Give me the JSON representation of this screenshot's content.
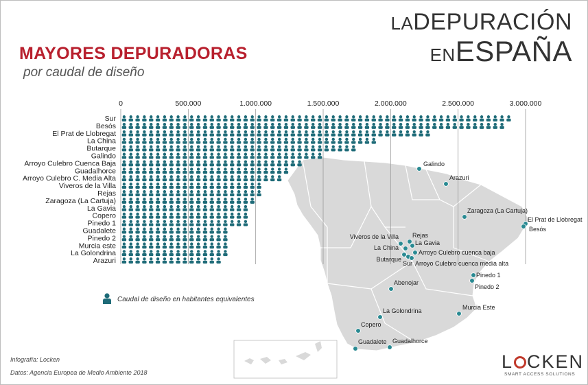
{
  "header": {
    "title": "MAYORES DEPURADORAS",
    "subtitle": "por caudal de diseño",
    "banner_line1_a": "LA",
    "banner_line1_b": "DEPURACIÓN",
    "banner_line2_a": "EN",
    "banner_line2_b": "ESPAÑA"
  },
  "legend": {
    "label": "Caudal de diseño en habitantes equivalentes",
    "icon": "person-icon"
  },
  "footer": {
    "credit": "Infografía: Locken",
    "source": "Datos: Agencia Europea de Medio Ambiente 2018"
  },
  "logo": {
    "left": "L",
    "right": "CKEN",
    "tagline": "SMART ACCESS SOLUTIONS",
    "accent": "#c0392b"
  },
  "colors": {
    "icon": "#1e6b78",
    "title": "#b8202e",
    "map_land": "#d9d9d9",
    "map_border": "#ffffff",
    "marker": "#2a8a92"
  },
  "chart_data": {
    "type": "bar",
    "orientation": "horizontal",
    "unit_per_icon": 50000,
    "xlim": [
      0,
      3000000
    ],
    "x_ticks": [
      "0",
      "500.000",
      "1.000.000",
      "1.500.000",
      "2.000.000",
      "2.500.000",
      "3.000.000"
    ],
    "x_tick_values": [
      0,
      500000,
      1000000,
      1500000,
      2000000,
      2500000,
      3000000
    ],
    "categories": [
      "Sur",
      "Besós",
      "El Prat de Llobregat",
      "La China",
      "Butarque",
      "Galindo",
      "Arroyo Culebro Cuenca Baja",
      "Guadalhorce",
      "Arroyo Culebro C. Media Alta",
      "Viveros de la Villa",
      "Rejas",
      "Zaragoza (La Cartuja)",
      "La Gavia",
      "Copero",
      "Pinedo 1",
      "Guadalete",
      "Pinedo 2",
      "Murcia este",
      "La Golondrina",
      "Arazuri"
    ],
    "values": [
      2920000,
      2850000,
      2300000,
      1900000,
      1750000,
      1480000,
      1330000,
      1250000,
      1200000,
      1060000,
      1030000,
      1010000,
      960000,
      960000,
      960000,
      820000,
      820000,
      820000,
      790000,
      760000
    ],
    "grid": true
  },
  "map": {
    "labels": [
      "Galindo",
      "Arazuri",
      "Zaragoza (La Cartuja)",
      "El Prat de Llobregat",
      "Besós",
      "Viveros de la Villa",
      "Rejas",
      "La Gavia",
      "La China",
      "Arroyo Culebro cuenca baja",
      "Butarque",
      "Sur",
      "Arroyo Culebro cuenca media alta",
      "Pinedo 1",
      "Pinedo 2",
      "Abenojar",
      "Murcia Este",
      "La Golondrina",
      "Copero",
      "Guadalete",
      "Guadalhorce"
    ]
  }
}
